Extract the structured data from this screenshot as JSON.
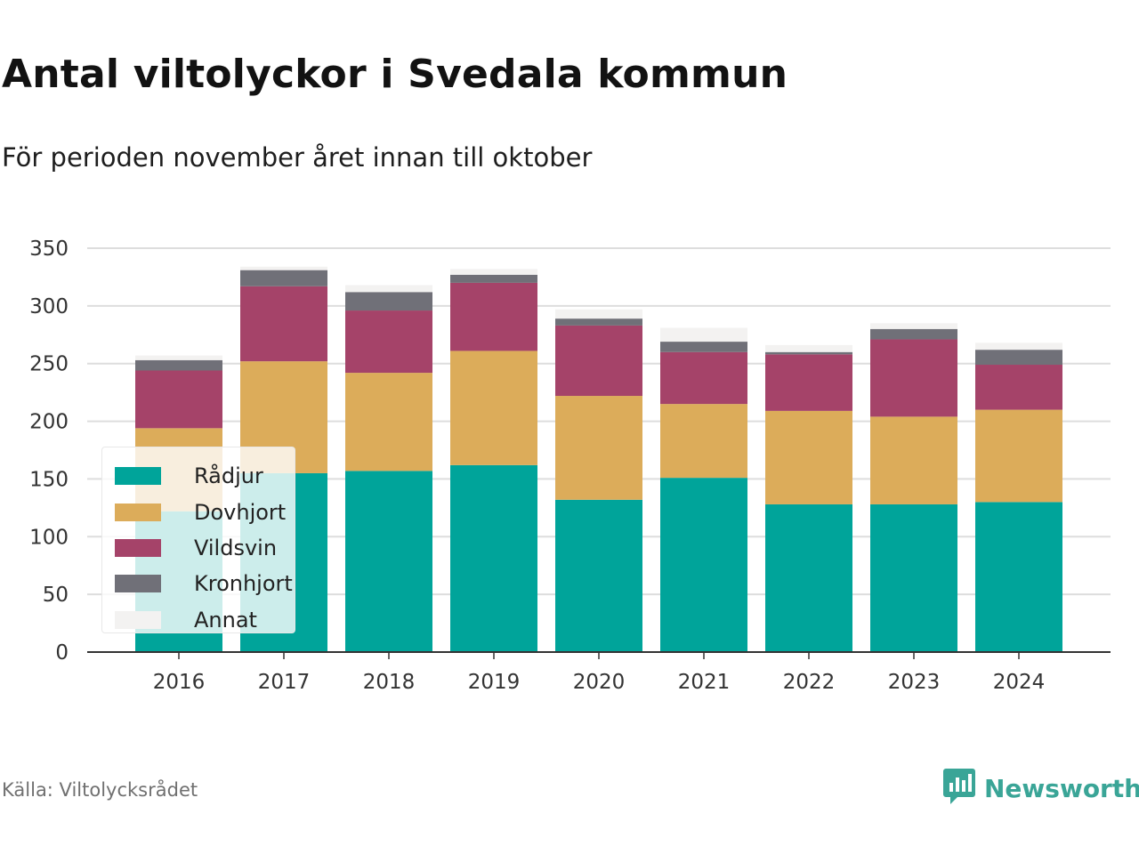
{
  "title": "Antal viltolyckor i Svedala kommun",
  "subtitle": "För perioden november året innan till oktober",
  "source": "Källa: Viltolycksrådet",
  "brand": {
    "name": "Newsworthy",
    "icon": "newsworthy-logo-icon",
    "color": "#3aa597"
  },
  "chart_data": {
    "type": "bar",
    "stacked": true,
    "title": "",
    "xlabel": "",
    "ylabel": "",
    "categories": [
      "2016",
      "2017",
      "2018",
      "2019",
      "2020",
      "2021",
      "2022",
      "2023",
      "2024"
    ],
    "ylim": [
      0,
      350
    ],
    "yticks": [
      0,
      50,
      100,
      150,
      200,
      250,
      300,
      350
    ],
    "grid": true,
    "legend": "bottom-left, overlaying bars",
    "series": [
      {
        "name": "Rådjur",
        "color": "#00a49a",
        "values": [
          122,
          155,
          157,
          162,
          132,
          151,
          128,
          128,
          130
        ]
      },
      {
        "name": "Dovhjort",
        "color": "#dcac5a",
        "values": [
          72,
          97,
          85,
          99,
          90,
          64,
          81,
          76,
          80
        ]
      },
      {
        "name": "Vildsvin",
        "color": "#a54369",
        "values": [
          50,
          65,
          54,
          59,
          61,
          45,
          49,
          67,
          39
        ]
      },
      {
        "name": "Kronhjort",
        "color": "#707078",
        "values": [
          9,
          14,
          16,
          7,
          6,
          9,
          2,
          9,
          13
        ]
      },
      {
        "name": "Annat",
        "color": "#f3f2f1",
        "values": [
          4,
          3,
          6,
          5,
          8,
          12,
          6,
          5,
          6
        ]
      }
    ]
  }
}
